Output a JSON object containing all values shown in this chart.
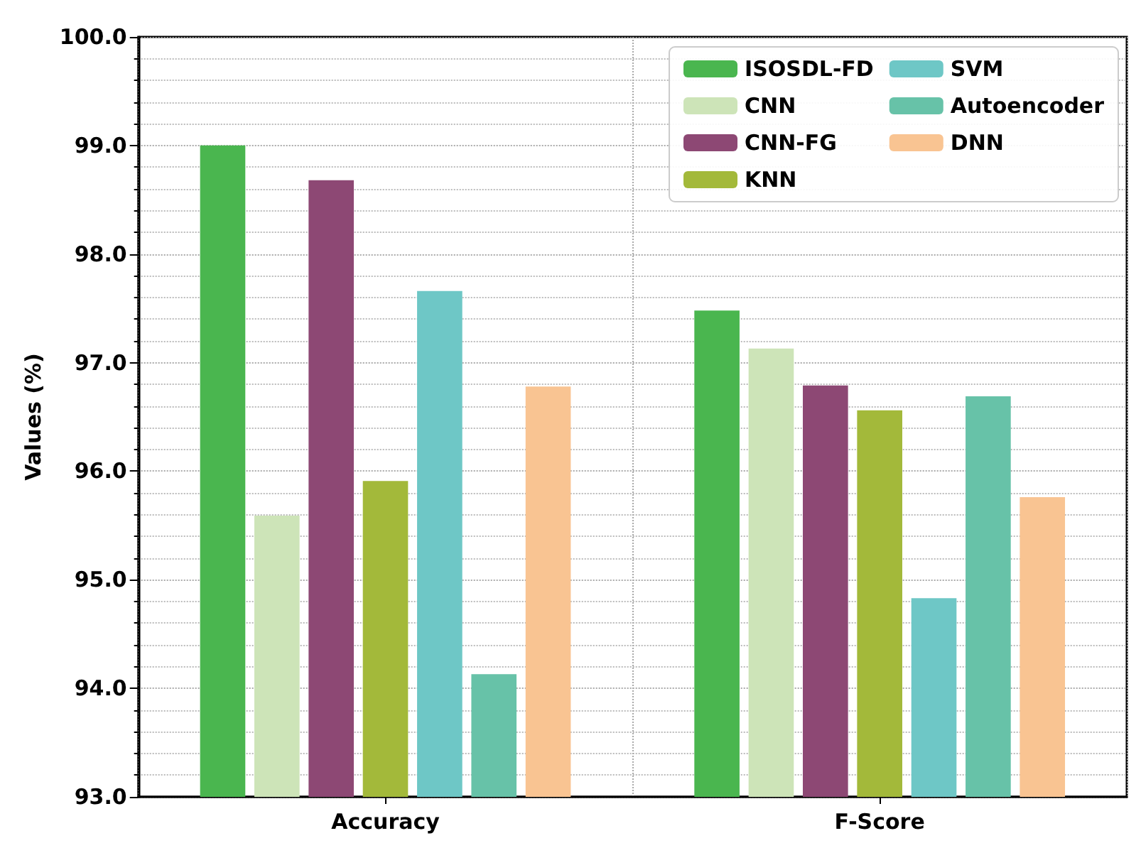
{
  "chart_data": {
    "type": "bar",
    "ylabel": "Values (%)",
    "categories": [
      "Accuracy",
      "F-Score"
    ],
    "series": [
      {
        "name": "ISOSDL-FD",
        "color": "#4ab64f",
        "values": [
          99.0,
          97.48
        ]
      },
      {
        "name": "CNN",
        "color": "#cde4b8",
        "values": [
          95.59,
          97.13
        ]
      },
      {
        "name": "CNN-FG",
        "color": "#8d4874",
        "values": [
          98.68,
          96.79
        ]
      },
      {
        "name": "KNN",
        "color": "#a3b93a",
        "values": [
          95.91,
          96.56
        ]
      },
      {
        "name": "SVM",
        "color": "#6ec7c6",
        "values": [
          97.66,
          94.83
        ]
      },
      {
        "name": "Autoencoder",
        "color": "#67c2a8",
        "values": [
          94.13,
          96.69
        ]
      },
      {
        "name": "DNN",
        "color": "#f9c492",
        "values": [
          96.78,
          95.76
        ]
      }
    ],
    "ylim": [
      93,
      100
    ],
    "yticks": [
      {
        "value": 93,
        "label": "93.0"
      },
      {
        "value": 94,
        "label": "94.0"
      },
      {
        "value": 95,
        "label": "95.0"
      },
      {
        "value": 96,
        "label": "96.0"
      },
      {
        "value": 97,
        "label": "97.0"
      },
      {
        "value": 98,
        "label": "98.0"
      },
      {
        "value": 99,
        "label": "99.0"
      },
      {
        "value": 100,
        "label": "100.0"
      }
    ],
    "grid": true,
    "legend": "top right"
  }
}
